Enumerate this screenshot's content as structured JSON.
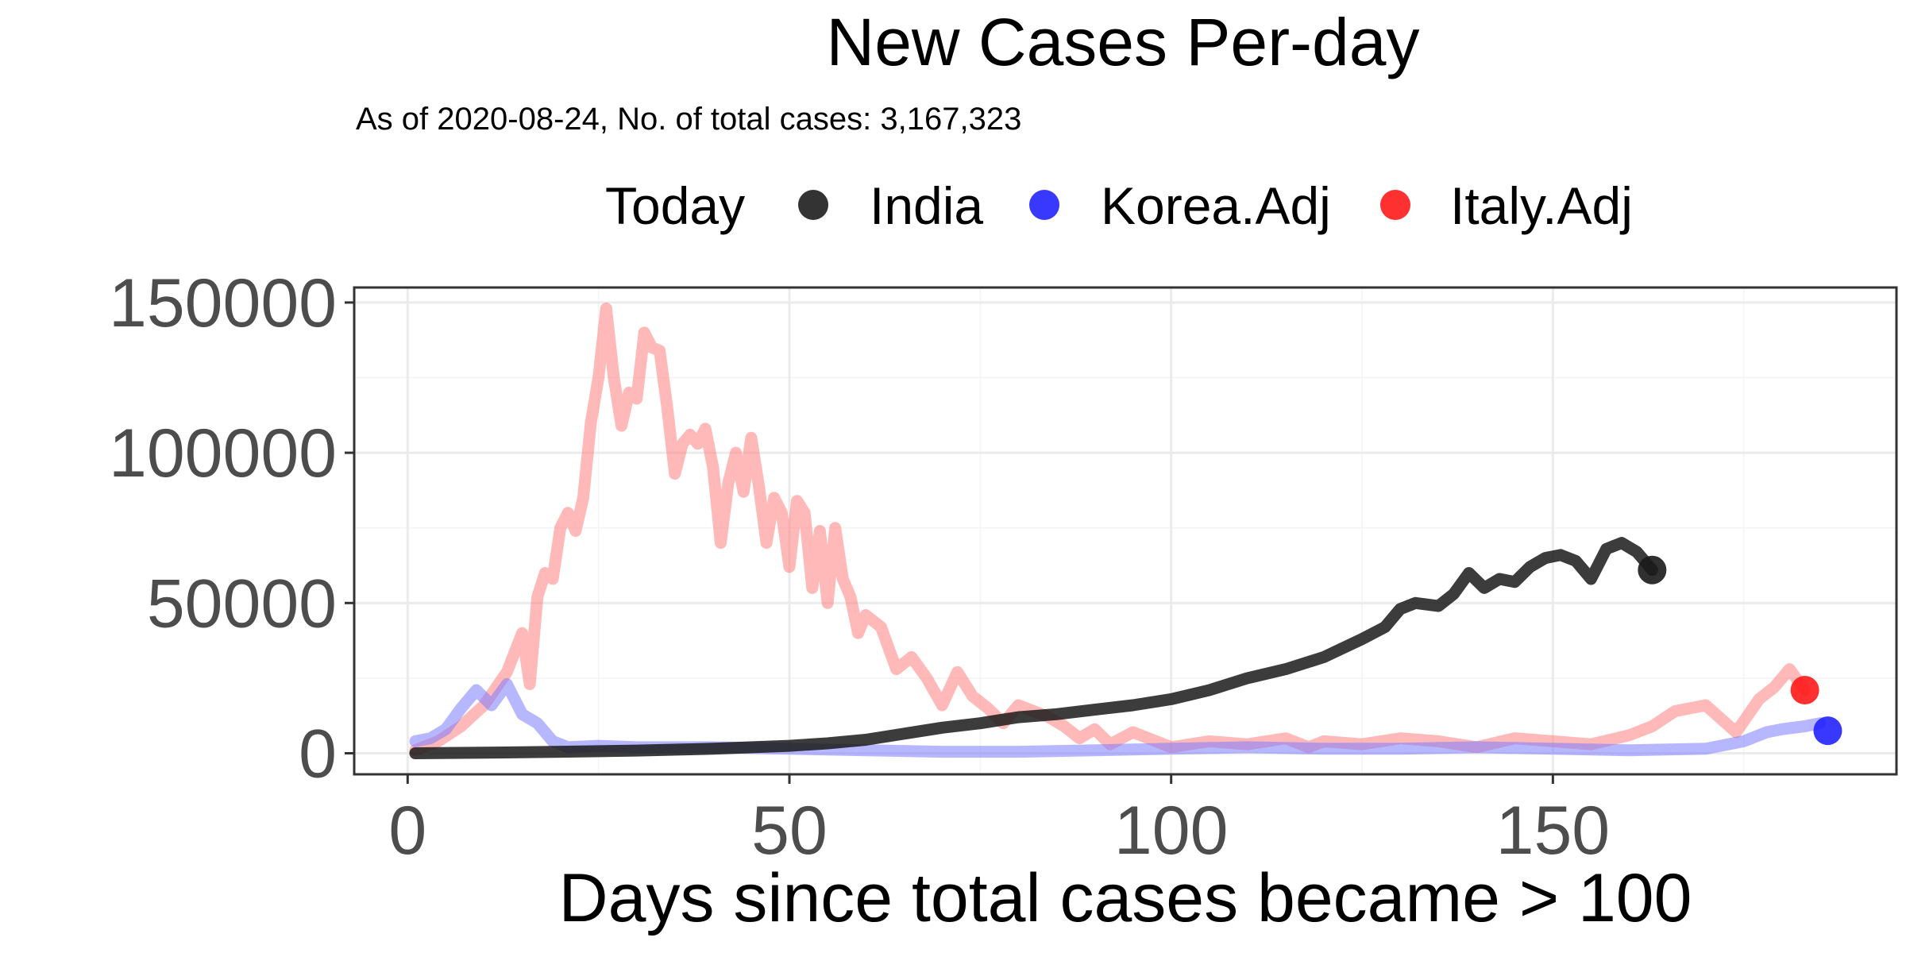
{
  "chart_data": {
    "type": "line",
    "title": "New Cases Per-day",
    "subtitle": "As of 2020-08-24, No. of total cases: 3,167,323",
    "xlabel": "Days since total cases became > 100",
    "ylabel": "",
    "xlim": [
      -7,
      195
    ],
    "ylim": [
      -7000,
      155000
    ],
    "x_ticks": [
      0,
      50,
      100,
      150
    ],
    "x_tick_labels": [
      "0",
      "50",
      "100",
      "150"
    ],
    "y_ticks": [
      0,
      50000,
      100000,
      150000
    ],
    "y_tick_labels": [
      "0",
      "50000",
      "100000",
      "150000"
    ],
    "grid": true,
    "legend": {
      "position": "top",
      "title": "Today",
      "entries": [
        "India",
        "Korea.Adj",
        "Italy.Adj"
      ]
    },
    "series": [
      {
        "name": "India",
        "color": "#1a1a1a",
        "opacity": 0.85,
        "x": [
          1,
          10,
          20,
          30,
          40,
          50,
          55,
          60,
          65,
          70,
          75,
          80,
          85,
          90,
          95,
          100,
          105,
          110,
          115,
          120,
          125,
          128,
          130,
          132,
          135,
          137,
          139,
          141,
          143,
          145,
          147,
          149,
          151,
          153,
          155,
          157,
          159,
          161,
          163
        ],
        "y": [
          0,
          200,
          500,
          900,
          1500,
          2500,
          3300,
          4500,
          6500,
          8500,
          10000,
          12000,
          13000,
          14500,
          16000,
          18000,
          21000,
          25000,
          28000,
          32000,
          38000,
          42000,
          48000,
          50000,
          49000,
          53000,
          60000,
          55000,
          58000,
          57000,
          62000,
          65000,
          66000,
          64000,
          58000,
          68000,
          70000,
          67000,
          61000
        ]
      },
      {
        "name": "Korea.Adj",
        "color": "#7b7bff",
        "opacity": 0.55,
        "x": [
          1,
          3,
          5,
          7,
          9,
          11,
          13,
          15,
          17,
          19,
          21,
          25,
          30,
          40,
          50,
          60,
          70,
          80,
          90,
          100,
          110,
          120,
          130,
          140,
          150,
          160,
          170,
          175,
          178,
          180,
          183,
          185
        ],
        "y": [
          4000,
          5000,
          8000,
          15000,
          21000,
          16000,
          23000,
          13000,
          10000,
          4000,
          2000,
          2500,
          2000,
          2000,
          1500,
          1000,
          500,
          500,
          1000,
          1500,
          2000,
          1500,
          1500,
          2000,
          1500,
          1000,
          1500,
          4000,
          7000,
          8000,
          9000,
          10000
        ]
      },
      {
        "name": "Italy.Adj",
        "color": "#ff8080",
        "opacity": 0.55,
        "x": [
          1,
          4,
          7,
          10,
          13,
          15,
          16,
          17,
          18,
          19,
          20,
          21,
          22,
          23,
          24,
          25,
          26,
          27,
          28,
          29,
          30,
          31,
          32,
          33,
          34,
          35,
          36,
          37,
          38,
          39,
          40,
          41,
          42,
          43,
          44,
          45,
          46,
          47,
          48,
          49,
          50,
          51,
          52,
          53,
          54,
          55,
          56,
          57,
          58,
          59,
          60,
          62,
          64,
          66,
          68,
          70,
          72,
          74,
          76,
          78,
          80,
          82,
          84,
          86,
          88,
          90,
          92,
          95,
          100,
          105,
          110,
          115,
          118,
          120,
          125,
          130,
          135,
          140,
          145,
          150,
          155,
          160,
          163,
          166,
          170,
          174,
          177,
          179,
          181,
          183
        ],
        "y": [
          1000,
          4000,
          9000,
          16000,
          27000,
          40000,
          23000,
          52000,
          60000,
          58000,
          75000,
          80000,
          74000,
          85000,
          110000,
          125000,
          148000,
          125000,
          109000,
          120000,
          118000,
          140000,
          135000,
          134000,
          115000,
          93000,
          103000,
          106000,
          103000,
          108000,
          95000,
          70000,
          90000,
          100000,
          87000,
          105000,
          89000,
          70000,
          85000,
          80000,
          62000,
          84000,
          80000,
          55000,
          74000,
          50000,
          75000,
          58000,
          52000,
          40000,
          46000,
          42000,
          28000,
          32000,
          25000,
          16000,
          27000,
          19000,
          15000,
          10000,
          16000,
          14000,
          12000,
          9000,
          5000,
          8000,
          3000,
          7000,
          2000,
          4000,
          3000,
          5000,
          2000,
          4000,
          3000,
          5000,
          4000,
          2000,
          5000,
          4000,
          3000,
          6000,
          9000,
          14000,
          16000,
          7000,
          18000,
          22000,
          28000,
          21000
        ]
      }
    ],
    "today_points": [
      {
        "name": "India",
        "x": 163,
        "y": 61000,
        "color": "#1a1a1a"
      },
      {
        "name": "Korea.Adj",
        "x": 186,
        "y": 7500,
        "color": "#2222ff"
      },
      {
        "name": "Italy.Adj",
        "x": 183,
        "y": 21000,
        "color": "#ff1a1a"
      }
    ]
  }
}
